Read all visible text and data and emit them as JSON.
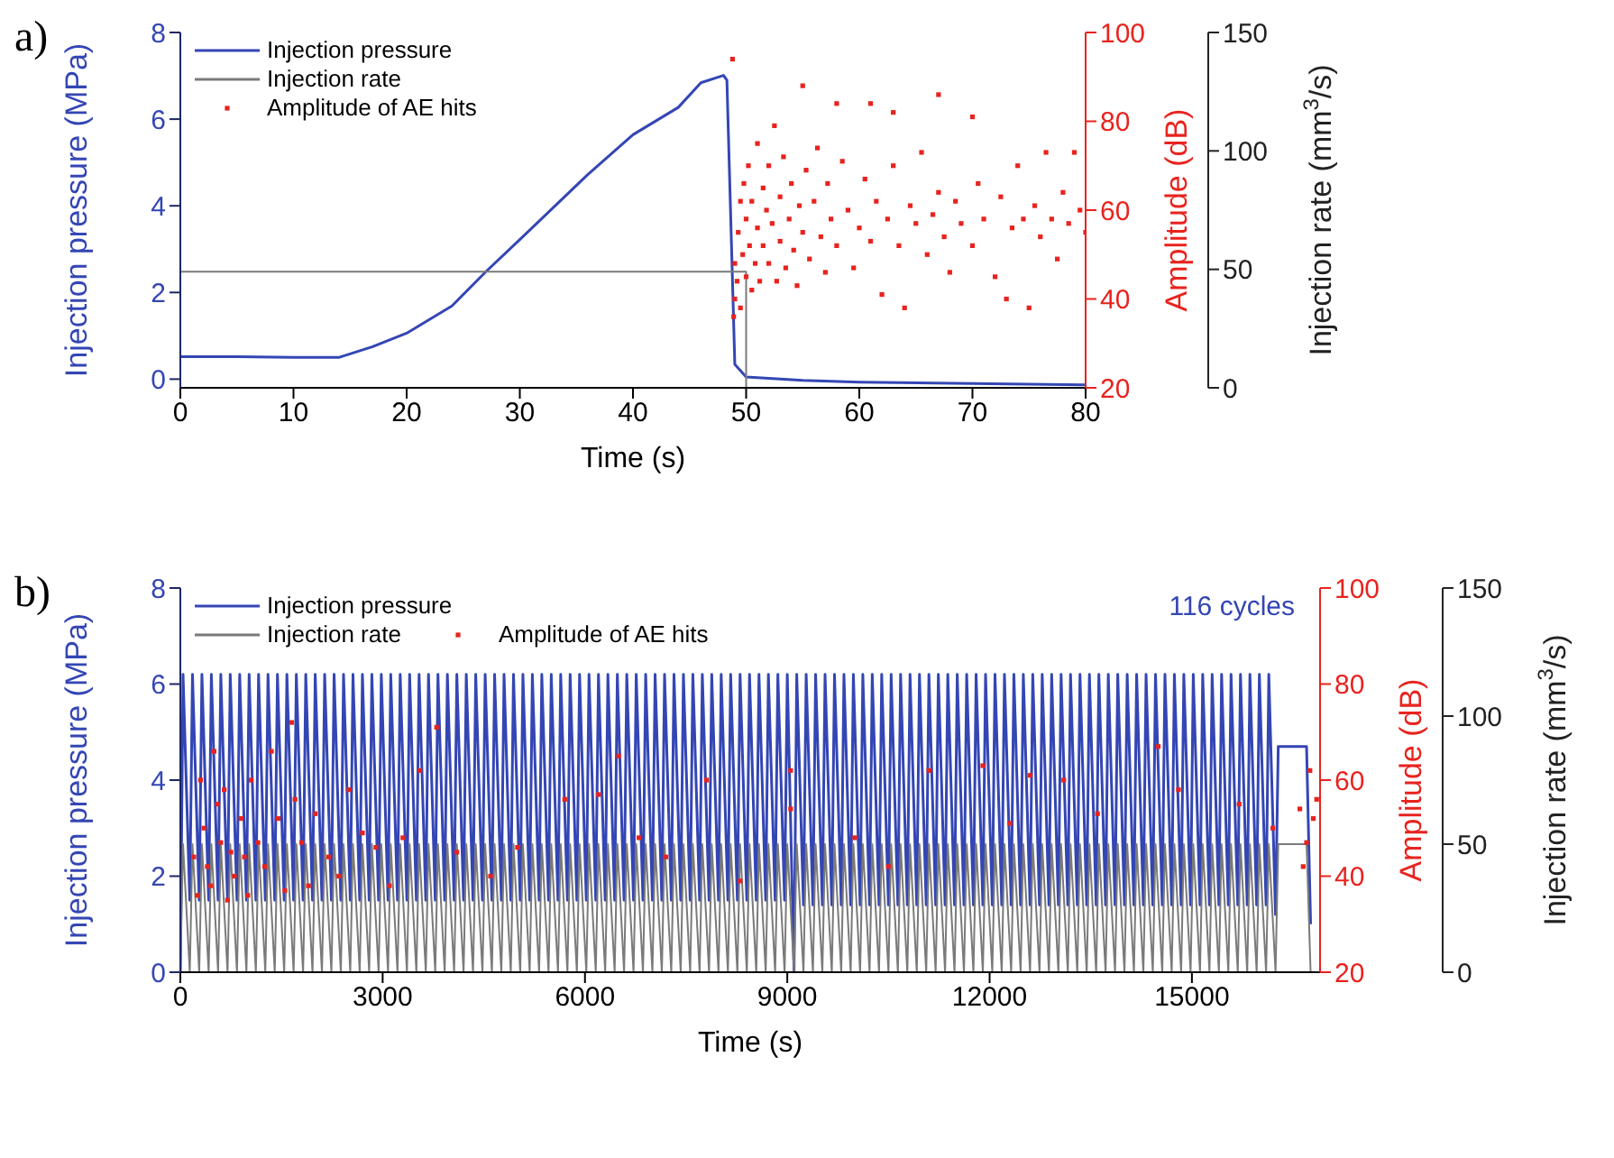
{
  "chart_data": [
    {
      "type": "line",
      "annotations": [
        "a)"
      ],
      "xlabel": "Time (s)",
      "ylabel": "Injection pressure (MPa)",
      "y2label": "Amplitude (dB)",
      "y3label": "Injection rate (mm$^{3}$/s)",
      "xlim": [
        0,
        80
      ],
      "xticks": [
        0,
        10,
        20,
        30,
        40,
        50,
        60,
        70,
        80
      ],
      "ylim": [
        -0.2,
        8
      ],
      "yticks": [
        0,
        2,
        4,
        6,
        8
      ],
      "y2lim": [
        20,
        100
      ],
      "y2ticks": [
        20,
        40,
        60,
        80,
        100
      ],
      "y3lim": [
        0,
        150
      ],
      "y3ticks": [
        0,
        50,
        100,
        150
      ],
      "legend": "top left",
      "series": [
        {
          "name": "Injection pressure",
          "color": "#3446b4",
          "axis": "y",
          "x": [
            0,
            5,
            10,
            14,
            17,
            20,
            24,
            27,
            30,
            34,
            36,
            40,
            44,
            46,
            48,
            48.3,
            49,
            50,
            55,
            60,
            70,
            80
          ],
          "values": [
            0.52,
            0.52,
            0.5,
            0.5,
            0.75,
            1.06,
            1.69,
            2.48,
            3.22,
            4.22,
            4.72,
            5.64,
            6.27,
            6.84,
            7.01,
            6.9,
            0.34,
            0.05,
            -0.03,
            -0.07,
            -0.1,
            -0.13
          ]
        },
        {
          "name": "Injection rate",
          "color": "#7a7a7a",
          "axis": "y3",
          "x": [
            0,
            50,
            50,
            80
          ],
          "values": [
            49,
            49,
            0,
            0
          ]
        },
        {
          "name": "Amplitude of AE hits",
          "type": "scatter",
          "marker": "square",
          "color": "#e8231e",
          "axis": "y2",
          "x": [
            48.8,
            48.9,
            49,
            49,
            49.2,
            49.3,
            49.5,
            49.5,
            49.7,
            49.8,
            50,
            50,
            50.2,
            50.3,
            50.5,
            50.5,
            50.8,
            51,
            51,
            51.2,
            51.5,
            51.5,
            51.8,
            52,
            52,
            52.3,
            52.5,
            52.7,
            53,
            53,
            53.3,
            53.5,
            53.8,
            54,
            54.2,
            54.5,
            54.7,
            55,
            55,
            55.3,
            55.6,
            56,
            56.3,
            56.6,
            57,
            57.2,
            57.5,
            58,
            58,
            58.5,
            59,
            59.5,
            60,
            60.5,
            61,
            61,
            61.5,
            62,
            62.5,
            63,
            63,
            63.5,
            64,
            64.5,
            65,
            65.5,
            66,
            66.5,
            67,
            67,
            67.5,
            68,
            68.5,
            69,
            70,
            70,
            70.5,
            71,
            72,
            72.5,
            73,
            73.5,
            74,
            74.5,
            75,
            75.5,
            76,
            76.5,
            77,
            77.5,
            78,
            78.5,
            79,
            79.5,
            80
          ],
          "values": [
            94,
            36,
            40,
            48,
            44,
            55,
            38,
            62,
            50,
            66,
            45,
            58,
            70,
            52,
            42,
            62,
            48,
            75,
            56,
            44,
            65,
            52,
            60,
            48,
            70,
            57,
            79,
            44,
            63,
            53,
            72,
            47,
            58,
            66,
            51,
            43,
            61,
            88,
            55,
            69,
            49,
            62,
            74,
            54,
            46,
            66,
            58,
            84,
            52,
            71,
            60,
            47,
            56,
            67,
            84,
            53,
            62,
            41,
            58,
            82,
            70,
            52,
            38,
            61,
            57,
            73,
            50,
            59,
            86,
            64,
            54,
            46,
            62,
            57,
            81,
            52,
            66,
            58,
            45,
            63,
            40,
            56,
            70,
            58,
            38,
            61,
            54,
            73,
            58,
            49,
            64,
            57,
            73,
            60,
            55
          ]
        }
      ]
    },
    {
      "type": "line",
      "annotations": [
        "b)",
        "116 cycles"
      ],
      "xlabel": "Time (s)",
      "ylabel": "Injection pressure (MPa)",
      "y2label": "Amplitude (dB)",
      "y3label": "Injection rate (mm$^{3}$/s)",
      "xlim": [
        0,
        16900
      ],
      "xticks": [
        0,
        3000,
        6000,
        9000,
        12000,
        15000
      ],
      "ylim": [
        0,
        8
      ],
      "yticks": [
        0,
        2,
        4,
        6,
        8
      ],
      "y2lim": [
        20,
        100
      ],
      "y2ticks": [
        20,
        40,
        60,
        80,
        100
      ],
      "y3lim": [
        0,
        150
      ],
      "y3ticks": [
        0,
        50,
        100,
        150
      ],
      "legend": "top left",
      "x": [
        0,
        40,
        140,
        180,
        280,
        320,
        420,
        460,
        560,
        600,
        700,
        740,
        840,
        880,
        980,
        1020,
        1120,
        1160,
        1260,
        1300,
        1400,
        1440,
        1540,
        1580,
        1680,
        1720,
        1820,
        1860,
        1960,
        2000,
        2100,
        2140,
        2240,
        2280,
        2380,
        2420,
        2520,
        2560,
        2660,
        2700,
        2800,
        2840,
        2940,
        2980,
        3080,
        3120,
        3220,
        3260,
        3360,
        3400,
        3500,
        3540,
        3640,
        3680,
        3780,
        3820,
        3920,
        3960,
        4060,
        4100,
        4200,
        4240,
        4340,
        4380,
        4480,
        4520,
        4620,
        4660,
        4760,
        4800,
        4900,
        4940,
        5040,
        5080,
        5180,
        5220,
        5320,
        5360,
        5460,
        5500,
        5600,
        5640,
        5740,
        5780,
        5880,
        5920,
        6020,
        6060,
        6160,
        6200,
        6300,
        6340,
        6440,
        6480,
        6580,
        6620,
        6720,
        6760,
        6860,
        6900,
        7000,
        7040,
        7140,
        7180,
        7280,
        7320,
        7420,
        7460,
        7560,
        7600,
        7700,
        7740,
        7840,
        7880,
        7980,
        8020,
        8120,
        8160,
        8260,
        8300,
        8400,
        8440,
        8540,
        8580,
        8680,
        8720,
        8820,
        8860,
        8960,
        9000,
        9100,
        9140,
        9240,
        9280,
        9380,
        9420,
        9520,
        9560,
        9660,
        9700,
        9800,
        9840,
        9940,
        9980,
        10080,
        10120,
        10220,
        10260,
        10360,
        10400,
        10500,
        10540,
        10640,
        10680,
        10780,
        10820,
        10920,
        10960,
        11060,
        11100,
        11200,
        11240,
        11340,
        11380,
        11480,
        11520,
        11620,
        11660,
        11760,
        11800,
        11900,
        11940,
        12040,
        12080,
        12180,
        12220,
        12320,
        12360,
        12460,
        12500,
        12600,
        12640,
        12740,
        12780,
        12880,
        12920,
        13020,
        13060,
        13160,
        13200,
        13300,
        13340,
        13440,
        13480,
        13580,
        13620,
        13720,
        13760,
        13860,
        13900,
        14000,
        14040,
        14140,
        14180,
        14280,
        14320,
        14420,
        14460,
        14560,
        14600,
        14700,
        14740,
        14840,
        14880,
        14980,
        15020,
        15120,
        15160,
        15260,
        15300,
        15400,
        15440,
        15540,
        15580,
        15680,
        15720,
        15820,
        15860,
        15960,
        16000,
        16100,
        16140,
        16240,
        16280,
        16700,
        16760
      ],
      "series": [
        {
          "name": "Injection pressure",
          "color": "#3446b4",
          "axis": "y",
          "values": [
            0,
            6.2,
            1.5,
            6.2,
            1.5,
            6.2,
            1.5,
            6.2,
            1.5,
            6.2,
            1.5,
            6.2,
            1.5,
            6.2,
            1.5,
            6.2,
            1.5,
            6.2,
            1.5,
            6.2,
            1.5,
            6.2,
            1.5,
            6.2,
            1.5,
            6.2,
            1.5,
            6.2,
            1.5,
            6.2,
            1.5,
            6.2,
            1.5,
            6.2,
            1.5,
            6.2,
            1.5,
            6.2,
            1.5,
            6.2,
            1.5,
            6.2,
            1.5,
            6.2,
            1.5,
            6.2,
            1.5,
            6.2,
            1.5,
            6.2,
            1.5,
            6.2,
            1.5,
            6.2,
            1.5,
            6.2,
            1.5,
            6.2,
            1.5,
            6.2,
            1.5,
            6.2,
            1.5,
            6.2,
            1.5,
            6.2,
            1.5,
            6.2,
            1.5,
            6.2,
            1.5,
            6.2,
            1.5,
            6.2,
            1.5,
            6.2,
            1.5,
            6.2,
            1.5,
            6.2,
            1.5,
            6.2,
            1.5,
            6.2,
            1.5,
            6.2,
            1.5,
            6.2,
            1.5,
            6.2,
            1.5,
            6.2,
            1.5,
            6.2,
            1.5,
            6.2,
            1.5,
            6.2,
            1.5,
            6.2,
            1.5,
            6.2,
            1.5,
            6.2,
            1.5,
            6.2,
            1.5,
            6.2,
            1.5,
            6.2,
            1.5,
            6.2,
            1.5,
            6.2,
            1.5,
            6.2,
            1.5,
            6.2,
            1.5,
            6.2,
            1.5,
            6.2,
            1.5,
            6.2,
            1.5,
            6.2,
            1.5,
            6.2,
            1.5,
            6.2,
            0,
            6.2,
            1.4,
            6.2,
            1.4,
            6.2,
            1.4,
            6.2,
            1.4,
            6.2,
            1.4,
            6.2,
            1.4,
            6.2,
            1.4,
            6.2,
            1.4,
            6.2,
            1.4,
            6.2,
            1.4,
            6.2,
            1.4,
            6.2,
            1.4,
            6.2,
            1.4,
            6.2,
            1.4,
            6.2,
            1.4,
            6.2,
            1.4,
            6.2,
            1.4,
            6.2,
            1.4,
            6.2,
            1.4,
            6.2,
            1.4,
            6.2,
            1.4,
            6.2,
            1.4,
            6.2,
            1.4,
            6.2,
            1.4,
            6.2,
            1.4,
            6.2,
            1.4,
            6.2,
            1.4,
            6.2,
            1.4,
            6.2,
            1.4,
            6.2,
            1.4,
            6.2,
            1.4,
            6.2,
            1.4,
            6.2,
            1.4,
            6.2,
            1.4,
            6.2,
            1.4,
            6.2,
            1.4,
            6.2,
            1.4,
            6.2,
            1.4,
            6.2,
            1.4,
            6.2,
            1.4,
            6.2,
            1.4,
            6.2,
            1.4,
            6.2,
            1.4,
            6.2,
            1.4,
            6.2,
            1.4,
            6.2,
            1.4,
            6.2,
            1.4,
            6.2,
            1.4,
            6.2,
            1.4,
            6.2,
            1.4,
            6.2,
            1.2,
            4.7,
            4.7,
            1.0
          ]
        },
        {
          "name": "Injection rate",
          "color": "#7a7a7a",
          "axis": "y3",
          "values": [
            0,
            50,
            0,
            50,
            0,
            50,
            0,
            50,
            0,
            50,
            0,
            50,
            0,
            50,
            0,
            50,
            0,
            50,
            0,
            50,
            0,
            50,
            0,
            50,
            0,
            50,
            0,
            50,
            0,
            50,
            0,
            50,
            0,
            50,
            0,
            50,
            0,
            50,
            0,
            50,
            0,
            50,
            0,
            50,
            0,
            50,
            0,
            50,
            0,
            50,
            0,
            50,
            0,
            50,
            0,
            50,
            0,
            50,
            0,
            50,
            0,
            50,
            0,
            50,
            0,
            50,
            0,
            50,
            0,
            50,
            0,
            50,
            0,
            50,
            0,
            50,
            0,
            50,
            0,
            50,
            0,
            50,
            0,
            50,
            0,
            50,
            0,
            50,
            0,
            50,
            0,
            50,
            0,
            50,
            0,
            50,
            0,
            50,
            0,
            50,
            0,
            50,
            0,
            50,
            0,
            50,
            0,
            50,
            0,
            50,
            0,
            50,
            0,
            50,
            0,
            50,
            0,
            50,
            0,
            50,
            0,
            50,
            0,
            50,
            0,
            50,
            0,
            50,
            0,
            50,
            0,
            50,
            0,
            50,
            0,
            50,
            0,
            50,
            0,
            50,
            0,
            50,
            0,
            50,
            0,
            50,
            0,
            50,
            0,
            50,
            0,
            50,
            0,
            50,
            0,
            50,
            0,
            50,
            0,
            50,
            0,
            50,
            0,
            50,
            0,
            50,
            0,
            50,
            0,
            50,
            0,
            50,
            0,
            50,
            0,
            50,
            0,
            50,
            0,
            50,
            0,
            50,
            0,
            50,
            0,
            50,
            0,
            50,
            0,
            50,
            0,
            50,
            0,
            50,
            0,
            50,
            0,
            50,
            0,
            50,
            0,
            50,
            0,
            50,
            0,
            50,
            0,
            50,
            0,
            50,
            0,
            50,
            0,
            50,
            0,
            50,
            0,
            50,
            0,
            50,
            0,
            50,
            0,
            50,
            0,
            50,
            0,
            50,
            0,
            50,
            0,
            50,
            0,
            50,
            50,
            0
          ]
        },
        {
          "name": "Amplitude of AE hits",
          "type": "scatter",
          "marker": "square",
          "color": "#e8231e",
          "axis": "y2",
          "x": [
            200,
            250,
            300,
            350,
            400,
            450,
            500,
            550,
            600,
            650,
            700,
            750,
            800,
            900,
            950,
            1000,
            1050,
            1150,
            1250,
            1350,
            1450,
            1550,
            1650,
            1700,
            1800,
            1900,
            2000,
            2200,
            2350,
            2500,
            2700,
            2900,
            3100,
            3300,
            3550,
            3800,
            4100,
            4600,
            5000,
            5700,
            6200,
            6500,
            6800,
            7200,
            7800,
            8300,
            9050,
            9050,
            10000,
            10500,
            11100,
            11900,
            12300,
            12600,
            13100,
            13600,
            14500,
            14800,
            15700,
            16200,
            16600,
            16650,
            16700,
            16750,
            16800,
            16850
          ],
          "values": [
            44,
            36,
            60,
            50,
            42,
            38,
            66,
            55,
            47,
            58,
            35,
            45,
            40,
            52,
            44,
            36,
            60,
            47,
            42,
            66,
            52,
            37,
            72,
            56,
            47,
            38,
            53,
            44,
            40,
            58,
            49,
            46,
            38,
            48,
            62,
            71,
            45,
            40,
            46,
            56,
            57,
            65,
            48,
            44,
            60,
            39,
            62,
            54,
            48,
            42,
            62,
            63,
            51,
            61,
            60,
            53,
            67,
            58,
            55,
            50,
            54,
            42,
            47,
            62,
            52,
            56
          ]
        }
      ]
    }
  ]
}
